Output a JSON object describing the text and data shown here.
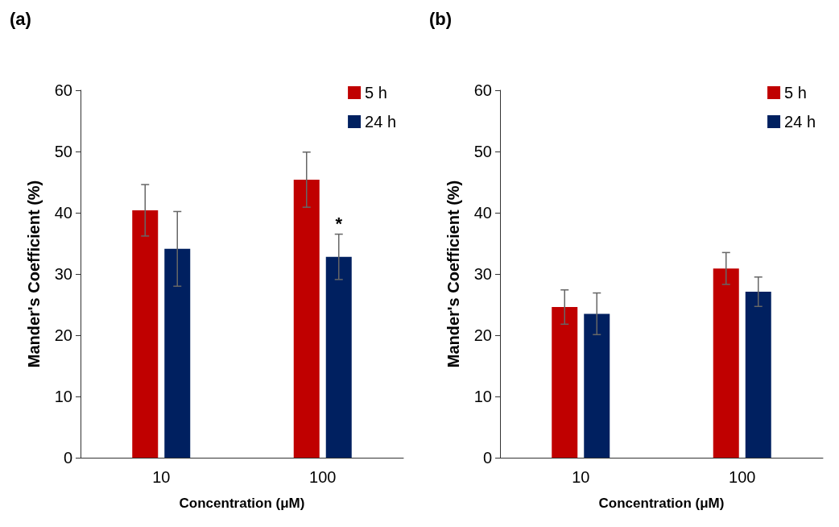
{
  "chart_data": [
    {
      "type": "bar",
      "title": "(a)",
      "xlabel": "Concentration (μM)",
      "ylabel": "Mander's Coefficient (%)",
      "categories": [
        "10",
        "100"
      ],
      "series": [
        {
          "name": "5 h",
          "color": "#c00000",
          "values": [
            40.4,
            45.4
          ],
          "errors": [
            4.2,
            4.5
          ]
        },
        {
          "name": "24 h",
          "color": "#002060",
          "values": [
            34.1,
            32.8
          ],
          "errors": [
            6.1,
            3.7
          ]
        }
      ],
      "ylim": [
        0,
        60
      ],
      "yticks": [
        0,
        10,
        20,
        30,
        40,
        50,
        60
      ],
      "grid": false,
      "legend": "top right",
      "annotations": [
        {
          "text": "*",
          "x": "100",
          "y": 36.5
        }
      ]
    },
    {
      "type": "bar",
      "title": "(b)",
      "xlabel": "Concentration (μM)",
      "ylabel": "Mander's Coefficient (%)",
      "categories": [
        "10",
        "100"
      ],
      "series": [
        {
          "name": "5 h",
          "color": "#c00000",
          "values": [
            24.6,
            30.9
          ],
          "errors": [
            2.8,
            2.6
          ]
        },
        {
          "name": "24 h",
          "color": "#002060",
          "values": [
            23.5,
            27.1
          ],
          "errors": [
            3.4,
            2.4
          ]
        }
      ],
      "ylim": [
        0,
        60
      ],
      "yticks": [
        0,
        10,
        20,
        30,
        40,
        50,
        60
      ],
      "grid": false,
      "legend": "top right"
    }
  ]
}
